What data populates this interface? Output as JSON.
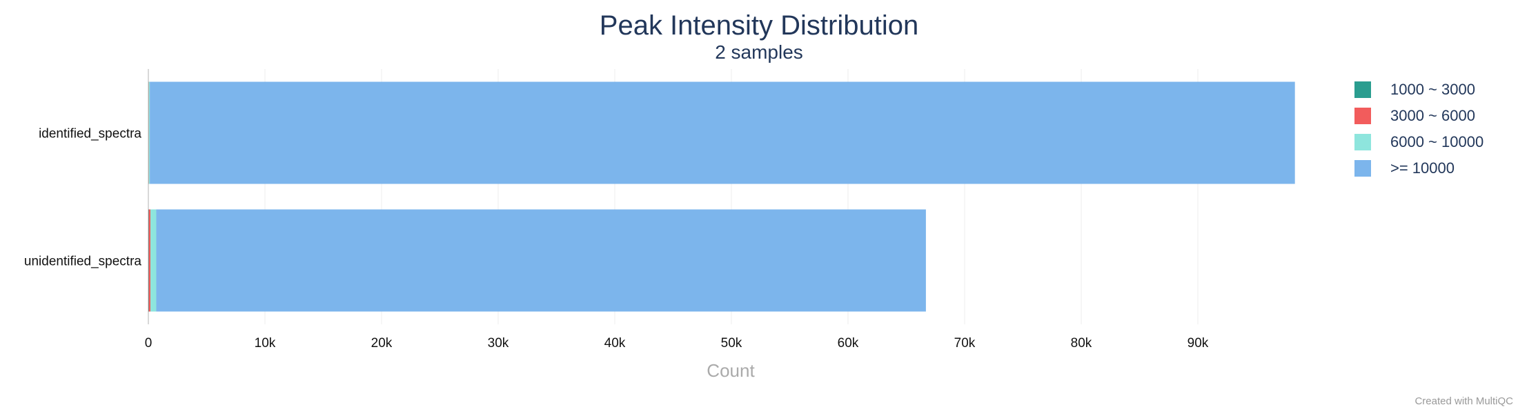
{
  "chart_data": {
    "type": "bar",
    "orientation": "horizontal",
    "stacked": true,
    "title": "Peak Intensity Distribution",
    "subtitle": "2 samples",
    "xlabel": "Count",
    "ylabel": "",
    "xlim": [
      0,
      100000
    ],
    "x_ticks": [
      {
        "value": 0,
        "label": "0"
      },
      {
        "value": 10000,
        "label": "10k"
      },
      {
        "value": 20000,
        "label": "20k"
      },
      {
        "value": 30000,
        "label": "30k"
      },
      {
        "value": 40000,
        "label": "40k"
      },
      {
        "value": 50000,
        "label": "50k"
      },
      {
        "value": 60000,
        "label": "60k"
      },
      {
        "value": 70000,
        "label": "70k"
      },
      {
        "value": 80000,
        "label": "80k"
      },
      {
        "value": 90000,
        "label": "90k"
      }
    ],
    "grid": true,
    "legend_position": "right",
    "categories": [
      "identified_spectra",
      "unidentified_spectra"
    ],
    "series": [
      {
        "name": "1000 ~ 3000",
        "color": "#2a9d8f",
        "values": [
          5,
          30
        ]
      },
      {
        "name": "3000 ~ 6000",
        "color": "#f25c5c",
        "values": [
          20,
          150
        ]
      },
      {
        "name": "6000 ~ 10000",
        "color": "#8ee5dd",
        "values": [
          100,
          500
        ]
      },
      {
        "name": ">= 10000",
        "color": "#7cb5ec",
        "values": [
          98200,
          66000
        ]
      }
    ]
  },
  "credit": "Created with MultiQC"
}
